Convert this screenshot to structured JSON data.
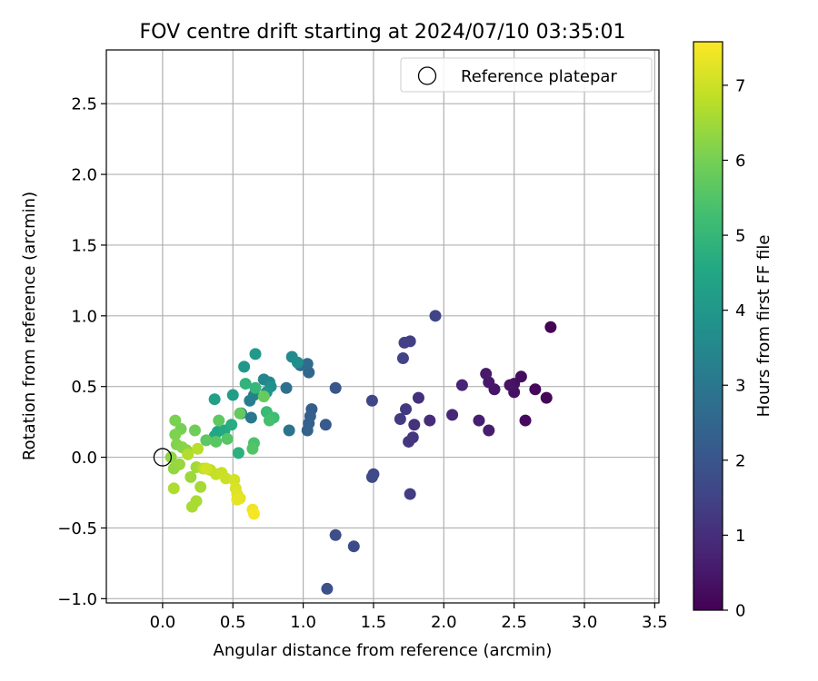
{
  "chart_data": {
    "type": "scatter",
    "title": "FOV centre drift starting at 2024/07/10 03:35:01",
    "xlabel": "Angular distance from reference (arcmin)",
    "ylabel": "Rotation from reference (arcmin)",
    "xlim": [
      -0.4,
      3.53
    ],
    "ylim": [
      -1.03,
      2.88
    ],
    "xticks": [
      "0.0",
      "0.5",
      "1.0",
      "1.5",
      "2.0",
      "2.5",
      "3.0",
      "3.5"
    ],
    "xtick_values": [
      0.0,
      0.5,
      1.0,
      1.5,
      2.0,
      2.5,
      3.0,
      3.5
    ],
    "yticks": [
      "−1.0",
      "−0.5",
      "0.0",
      "0.5",
      "1.0",
      "1.5",
      "2.0",
      "2.5"
    ],
    "ytick_values": [
      -1.0,
      -0.5,
      0.0,
      0.5,
      1.0,
      1.5,
      2.0,
      2.5
    ],
    "grid": true,
    "legend": {
      "position": "top-right",
      "label": "Reference platepar"
    },
    "reference_point": {
      "x": 0.0,
      "y": 0.0
    },
    "colormap": "viridis",
    "colorbar": {
      "label": "Hours from first FF file",
      "ticks": [
        "0",
        "1",
        "2",
        "3",
        "4",
        "5",
        "6",
        "7"
      ],
      "tick_values": [
        0,
        1,
        2,
        3,
        4,
        5,
        6,
        7
      ],
      "range": [
        0,
        7.58
      ]
    },
    "points": [
      {
        "x": 2.76,
        "y": 0.92,
        "t": 0.05
      },
      {
        "x": 2.73,
        "y": 0.42,
        "t": 0.1
      },
      {
        "x": 2.65,
        "y": 0.48,
        "t": 0.15
      },
      {
        "x": 2.58,
        "y": 0.26,
        "t": 0.2
      },
      {
        "x": 2.55,
        "y": 0.57,
        "t": 0.25
      },
      {
        "x": 2.5,
        "y": 0.52,
        "t": 0.3
      },
      {
        "x": 2.5,
        "y": 0.46,
        "t": 0.35
      },
      {
        "x": 2.47,
        "y": 0.51,
        "t": 0.4
      },
      {
        "x": 2.36,
        "y": 0.48,
        "t": 0.45
      },
      {
        "x": 2.32,
        "y": 0.53,
        "t": 0.5
      },
      {
        "x": 2.3,
        "y": 0.59,
        "t": 0.55
      },
      {
        "x": 2.32,
        "y": 0.19,
        "t": 0.6
      },
      {
        "x": 2.25,
        "y": 0.26,
        "t": 0.65
      },
      {
        "x": 2.13,
        "y": 0.51,
        "t": 0.75
      },
      {
        "x": 2.06,
        "y": 0.3,
        "t": 0.85
      },
      {
        "x": 1.9,
        "y": 0.26,
        "t": 0.95
      },
      {
        "x": 1.82,
        "y": 0.42,
        "t": 1.05
      },
      {
        "x": 1.79,
        "y": 0.23,
        "t": 1.1
      },
      {
        "x": 1.78,
        "y": 0.14,
        "t": 1.15
      },
      {
        "x": 1.75,
        "y": 0.11,
        "t": 1.2
      },
      {
        "x": 1.73,
        "y": 0.34,
        "t": 1.25
      },
      {
        "x": 1.69,
        "y": 0.27,
        "t": 1.3
      },
      {
        "x": 1.76,
        "y": -0.26,
        "t": 1.35
      },
      {
        "x": 1.76,
        "y": 0.82,
        "t": 1.4
      },
      {
        "x": 1.72,
        "y": 0.81,
        "t": 1.45
      },
      {
        "x": 1.71,
        "y": 0.7,
        "t": 1.5
      },
      {
        "x": 1.94,
        "y": 1.0,
        "t": 1.55
      },
      {
        "x": 1.49,
        "y": 0.4,
        "t": 1.6
      },
      {
        "x": 1.5,
        "y": -0.12,
        "t": 1.65
      },
      {
        "x": 1.49,
        "y": -0.14,
        "t": 1.7
      },
      {
        "x": 1.36,
        "y": -0.63,
        "t": 1.75
      },
      {
        "x": 1.23,
        "y": -0.55,
        "t": 1.8
      },
      {
        "x": 1.17,
        "y": -0.93,
        "t": 1.85
      },
      {
        "x": 1.23,
        "y": 0.49,
        "t": 2.0
      },
      {
        "x": 1.16,
        "y": 0.23,
        "t": 2.1
      },
      {
        "x": 1.06,
        "y": 0.34,
        "t": 2.2
      },
      {
        "x": 1.05,
        "y": 0.29,
        "t": 2.3
      },
      {
        "x": 1.04,
        "y": 0.24,
        "t": 2.35
      },
      {
        "x": 1.03,
        "y": 0.19,
        "t": 2.4
      },
      {
        "x": 1.04,
        "y": 0.6,
        "t": 2.5
      },
      {
        "x": 1.03,
        "y": 0.66,
        "t": 2.6
      },
      {
        "x": 0.98,
        "y": 0.65,
        "t": 2.7
      },
      {
        "x": 0.88,
        "y": 0.49,
        "t": 2.8
      },
      {
        "x": 0.9,
        "y": 0.19,
        "t": 2.9
      },
      {
        "x": 0.63,
        "y": 0.28,
        "t": 3.0
      },
      {
        "x": 0.56,
        "y": 0.31,
        "t": 3.1
      },
      {
        "x": 0.62,
        "y": 0.4,
        "t": 3.2
      },
      {
        "x": 0.65,
        "y": 0.44,
        "t": 3.3
      },
      {
        "x": 0.72,
        "y": 0.55,
        "t": 3.4
      },
      {
        "x": 0.76,
        "y": 0.53,
        "t": 3.5
      },
      {
        "x": 0.92,
        "y": 0.71,
        "t": 3.6
      },
      {
        "x": 0.96,
        "y": 0.67,
        "t": 3.7
      },
      {
        "x": 0.77,
        "y": 0.5,
        "t": 3.8
      },
      {
        "x": 0.74,
        "y": 0.46,
        "t": 3.9
      },
      {
        "x": 0.58,
        "y": 0.64,
        "t": 4.0
      },
      {
        "x": 0.66,
        "y": 0.73,
        "t": 4.1
      },
      {
        "x": 0.5,
        "y": 0.44,
        "t": 4.2
      },
      {
        "x": 0.37,
        "y": 0.41,
        "t": 4.3
      },
      {
        "x": 0.39,
        "y": 0.18,
        "t": 4.4
      },
      {
        "x": 0.37,
        "y": 0.15,
        "t": 4.5
      },
      {
        "x": 0.44,
        "y": 0.19,
        "t": 4.6
      },
      {
        "x": 0.49,
        "y": 0.23,
        "t": 4.7
      },
      {
        "x": 0.54,
        "y": 0.03,
        "t": 4.8
      },
      {
        "x": 0.59,
        "y": 0.52,
        "t": 4.9
      },
      {
        "x": 0.66,
        "y": 0.49,
        "t": 5.0
      },
      {
        "x": 0.74,
        "y": 0.32,
        "t": 5.1
      },
      {
        "x": 0.79,
        "y": 0.28,
        "t": 5.2
      },
      {
        "x": 0.76,
        "y": 0.26,
        "t": 5.3
      },
      {
        "x": 0.65,
        "y": 0.1,
        "t": 5.4
      },
      {
        "x": 0.64,
        "y": 0.06,
        "t": 5.5
      },
      {
        "x": 0.46,
        "y": 0.13,
        "t": 5.55
      },
      {
        "x": 0.38,
        "y": 0.11,
        "t": 5.6
      },
      {
        "x": 0.31,
        "y": 0.12,
        "t": 5.65
      },
      {
        "x": 0.4,
        "y": 0.26,
        "t": 5.7
      },
      {
        "x": 0.55,
        "y": 0.31,
        "t": 5.75
      },
      {
        "x": 0.72,
        "y": 0.43,
        "t": 5.8
      },
      {
        "x": 0.23,
        "y": 0.19,
        "t": 5.9
      },
      {
        "x": 0.13,
        "y": 0.2,
        "t": 6.0
      },
      {
        "x": 0.09,
        "y": 0.26,
        "t": 6.05
      },
      {
        "x": 0.09,
        "y": 0.16,
        "t": 6.1
      },
      {
        "x": 0.1,
        "y": 0.09,
        "t": 6.15
      },
      {
        "x": 0.14,
        "y": 0.07,
        "t": 6.2
      },
      {
        "x": 0.17,
        "y": 0.05,
        "t": 6.25
      },
      {
        "x": 0.06,
        "y": 0.0,
        "t": 6.3
      },
      {
        "x": 0.08,
        "y": -0.08,
        "t": 6.35
      },
      {
        "x": 0.12,
        "y": -0.05,
        "t": 6.4
      },
      {
        "x": 0.2,
        "y": -0.14,
        "t": 6.45
      },
      {
        "x": 0.24,
        "y": -0.07,
        "t": 6.5
      },
      {
        "x": 0.27,
        "y": -0.21,
        "t": 6.55
      },
      {
        "x": 0.24,
        "y": -0.31,
        "t": 6.6
      },
      {
        "x": 0.21,
        "y": -0.35,
        "t": 6.6
      },
      {
        "x": 0.08,
        "y": -0.22,
        "t": 6.65
      },
      {
        "x": 0.18,
        "y": 0.02,
        "t": 6.7
      },
      {
        "x": 0.25,
        "y": 0.06,
        "t": 6.75
      },
      {
        "x": 0.29,
        "y": -0.08,
        "t": 6.8
      },
      {
        "x": 0.34,
        "y": -0.09,
        "t": 6.85
      },
      {
        "x": 0.38,
        "y": -0.12,
        "t": 6.9
      },
      {
        "x": 0.42,
        "y": -0.11,
        "t": 6.95
      },
      {
        "x": 0.45,
        "y": -0.15,
        "t": 7.0
      },
      {
        "x": 0.31,
        "y": -0.08,
        "t": 7.05
      },
      {
        "x": 0.51,
        "y": -0.16,
        "t": 7.1
      },
      {
        "x": 0.52,
        "y": -0.22,
        "t": 7.15
      },
      {
        "x": 0.53,
        "y": -0.26,
        "t": 7.2
      },
      {
        "x": 0.55,
        "y": -0.29,
        "t": 7.25
      },
      {
        "x": 0.53,
        "y": -0.3,
        "t": 7.3
      },
      {
        "x": 0.64,
        "y": -0.37,
        "t": 7.4
      },
      {
        "x": 0.65,
        "y": -0.4,
        "t": 7.5
      }
    ]
  }
}
